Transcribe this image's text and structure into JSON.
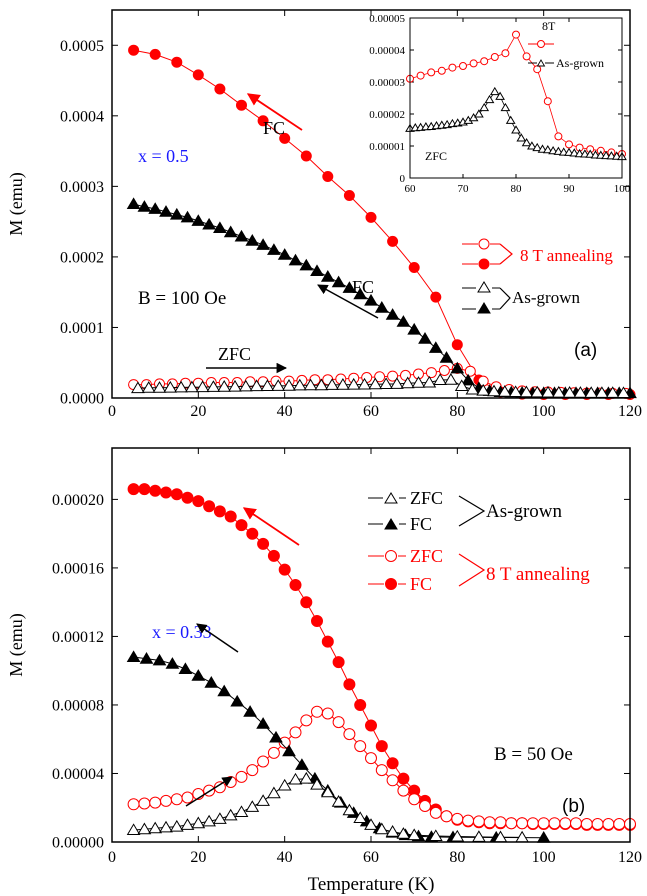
{
  "chart_data": [
    {
      "id": "a",
      "type": "scatter",
      "panel_label": "(a)",
      "xlabel": "",
      "ylabel": "M (emu)",
      "xlim": [
        0,
        120
      ],
      "ylim": [
        0,
        0.00055
      ],
      "x_ticks": [
        0,
        20,
        40,
        60,
        80,
        100,
        120
      ],
      "y_ticks": [
        {
          "v": 0,
          "label": "0.0000"
        },
        {
          "v": 0.0001,
          "label": "0.0001"
        },
        {
          "v": 0.0002,
          "label": "0.0002"
        },
        {
          "v": 0.0003,
          "label": "0.0003"
        },
        {
          "v": 0.0004,
          "label": "0.0004"
        },
        {
          "v": 0.0005,
          "label": "0.0005"
        }
      ],
      "annotations": {
        "composition": "x = 0.5",
        "field": "B = 100 Oe",
        "fc_red": "FC",
        "fc_black": "FC",
        "zfc": "ZFC"
      },
      "legend": {
        "group1": "8 T annealing",
        "group2": "As-grown"
      },
      "series": [
        {
          "key": "8T_FC",
          "color": "#ff0000",
          "marker": "circle",
          "filled": true,
          "x": [
            5,
            10,
            15,
            20,
            25,
            30,
            35,
            40,
            45,
            50,
            55,
            60,
            65,
            70,
            75,
            80,
            85,
            90,
            95,
            100,
            105,
            110,
            115,
            120
          ],
          "y": [
            0.000493,
            0.000487,
            0.000476,
            0.000458,
            0.000438,
            0.000415,
            0.000393,
            0.000368,
            0.000343,
            0.000314,
            0.000287,
            0.000256,
            0.000222,
            0.000185,
            0.000143,
            7.55e-05,
            2.55e-05,
            8.5e-06,
            5.5e-06,
            5e-06,
            5e-06,
            5e-06,
            5e-06,
            5e-06
          ]
        },
        {
          "key": "8T_ZFC",
          "color": "#ff0000",
          "marker": "circle",
          "filled": false,
          "x": [
            5,
            8,
            11,
            14,
            17,
            20,
            23,
            26,
            29,
            32,
            35,
            38,
            41,
            44,
            47,
            50,
            53,
            56,
            59,
            62,
            65,
            68,
            71,
            74,
            77,
            80,
            83,
            86,
            89,
            92,
            95,
            98,
            101,
            104,
            107,
            110,
            113,
            116,
            119
          ],
          "y": [
            1.9e-05,
            1.9e-05,
            2e-05,
            2e-05,
            2.1e-05,
            2.1e-05,
            2.2e-05,
            2.2e-05,
            2.2e-05,
            2.3e-05,
            2.3e-05,
            2.4e-05,
            2.4e-05,
            2.5e-05,
            2.6e-05,
            2.6e-05,
            2.7e-05,
            2.8e-05,
            2.9e-05,
            3e-05,
            3.1e-05,
            3.2e-05,
            3.4e-05,
            3.6e-05,
            3.9e-05,
            4.2e-05,
            3.8e-05,
            2.4e-05,
            1.6e-05,
            1.2e-05,
            1e-05,
            9e-06,
            8.5e-06,
            8e-06,
            7.5e-06,
            7e-06,
            7e-06,
            6.5e-06,
            6.5e-06
          ]
        },
        {
          "key": "AG_FC",
          "color": "#000000",
          "marker": "triangle",
          "filled": true,
          "x": [
            5,
            7.5,
            10,
            12.5,
            15,
            17.5,
            20,
            22.5,
            25,
            27.5,
            30,
            32.5,
            35,
            37.5,
            40,
            42.5,
            45,
            47.5,
            50,
            52.5,
            55,
            57.5,
            60,
            62.5,
            65,
            67.5,
            70,
            72.5,
            75,
            77.5,
            80,
            82.5,
            85,
            87.5,
            90,
            92.5,
            95,
            97.5,
            100,
            102.5,
            105,
            107.5,
            110,
            112.5,
            115,
            117.5,
            120
          ],
          "y": [
            0.000275,
            0.000271,
            0.000268,
            0.000264,
            0.00026,
            0.000256,
            0.000251,
            0.000246,
            0.000241,
            0.000235,
            0.000229,
            0.000223,
            0.000217,
            0.00021,
            0.000203,
            0.000195,
            0.000188,
            0.00018,
            0.000172,
            0.000164,
            0.000156,
            0.000147,
            0.000138,
            0.000128,
            0.000118,
            0.000108,
            9.7e-05,
            8.4e-05,
            7.1e-05,
            5.7e-05,
            4.2e-05,
            2.5e-05,
            1.4e-05,
            1e-05,
            8.5e-06,
            8e-06,
            7.5e-06,
            7e-06,
            7e-06,
            7e-06,
            7e-06,
            7e-06,
            7e-06,
            7e-06,
            7e-06,
            7e-06,
            7e-06
          ]
        },
        {
          "key": "AG_ZFC",
          "color": "#000000",
          "marker": "triangle",
          "filled": false,
          "x": [
            6,
            8.5,
            11,
            13.5,
            16,
            18.5,
            21,
            23.5,
            26,
            28.5,
            31,
            33.5,
            36,
            38.5,
            41,
            43.5,
            46,
            48.5,
            51,
            53.5,
            56,
            58.5,
            61,
            63.5,
            66,
            68.5,
            71,
            73.5,
            76,
            78.5,
            81,
            83.5,
            86,
            88.5,
            91,
            93.5,
            96,
            98.5,
            101,
            103.5,
            106,
            108.5,
            111,
            113.5,
            116,
            118.5
          ],
          "y": [
            1.4e-05,
            1.45e-05,
            1.45e-05,
            1.48e-05,
            1.5e-05,
            1.52e-05,
            1.55e-05,
            1.58e-05,
            1.6e-05,
            1.62e-05,
            1.65e-05,
            1.68e-05,
            1.7e-05,
            1.72e-05,
            1.75e-05,
            1.78e-05,
            1.8e-05,
            1.82e-05,
            1.85e-05,
            1.88e-05,
            1.9e-05,
            1.92e-05,
            1.95e-05,
            1.98e-05,
            2e-05,
            2.1e-05,
            2.15e-05,
            2.2e-05,
            2.55e-05,
            2.6e-05,
            1.7e-05,
            1.2e-05,
            1.05e-05,
            9.5e-06,
            9e-06,
            8.5e-06,
            8.2e-06,
            8e-06,
            7.8e-06,
            7.6e-06,
            7.5e-06,
            7.4e-06,
            7.3e-06,
            7.2e-06,
            7.2e-06,
            7.1e-06
          ]
        }
      ]
    },
    {
      "id": "inset",
      "type": "scatter",
      "xlim": [
        60,
        100
      ],
      "ylim": [
        0,
        5e-05
      ],
      "x_ticks": [
        60,
        70,
        80,
        90,
        100
      ],
      "y_ticks": [
        {
          "v": 0,
          "label": "0"
        },
        {
          "v": 1e-05,
          "label": "0.00001"
        },
        {
          "v": 2e-05,
          "label": "0.00002"
        },
        {
          "v": 3e-05,
          "label": "0.00003"
        },
        {
          "v": 4e-05,
          "label": "0.00004"
        },
        {
          "v": 5e-05,
          "label": "0.00005"
        }
      ],
      "annotation": "ZFC",
      "legend": {
        "s1": "8T",
        "s2": "As-grown"
      },
      "series": [
        {
          "key": "8T",
          "color": "#ff0000",
          "marker": "circle",
          "filled": false,
          "x": [
            60,
            62,
            64,
            66,
            68,
            70,
            72,
            74,
            76,
            78,
            80,
            82,
            84,
            86,
            88,
            90,
            92,
            94,
            96,
            98,
            100
          ],
          "y": [
            3.1e-05,
            3.2e-05,
            3.3e-05,
            3.35e-05,
            3.45e-05,
            3.5e-05,
            3.58e-05,
            3.65e-05,
            3.78e-05,
            3.9e-05,
            4.48e-05,
            3.8e-05,
            3.4e-05,
            2.4e-05,
            1.3e-05,
            1.05e-05,
            9.5e-06,
            9e-06,
            8.5e-06,
            8e-06,
            7.5e-06
          ]
        },
        {
          "key": "AG",
          "color": "#000000",
          "marker": "triangle",
          "filled": false,
          "x": [
            60,
            61,
            62,
            63,
            64,
            65,
            66,
            67,
            68,
            69,
            70,
            71,
            72,
            73,
            74,
            75,
            76,
            77,
            78,
            79,
            80,
            81,
            82,
            83,
            84,
            85,
            86,
            87,
            88,
            89,
            90,
            91,
            92,
            93,
            94,
            95,
            96,
            97,
            98,
            99,
            100
          ],
          "y": [
            1.55e-05,
            1.57e-05,
            1.58e-05,
            1.6e-05,
            1.61e-05,
            1.63e-05,
            1.65e-05,
            1.67e-05,
            1.7e-05,
            1.72e-05,
            1.75e-05,
            1.8e-05,
            1.88e-05,
            2e-05,
            2.2e-05,
            2.45e-05,
            2.7e-05,
            2.55e-05,
            2.2e-05,
            1.8e-05,
            1.5e-05,
            1.25e-05,
            1.1e-05,
            1e-05,
            9.5e-06,
            9e-06,
            8.8e-06,
            8.5e-06,
            8.3e-06,
            8.1e-06,
            8e-06,
            7.8e-06,
            7.6e-06,
            7.5e-06,
            7.4e-06,
            7.2e-06,
            7.1e-06,
            7e-06,
            6.9e-06,
            6.8e-06,
            6.7e-06
          ]
        }
      ]
    },
    {
      "id": "b",
      "type": "scatter",
      "panel_label": "(b)",
      "xlabel": "Temperature (K)",
      "ylabel": "M (emu)",
      "xlim": [
        0,
        120
      ],
      "ylim": [
        0,
        0.00023
      ],
      "x_ticks": [
        0,
        20,
        40,
        60,
        80,
        100,
        120
      ],
      "y_ticks": [
        {
          "v": 0,
          "label": "0.00000"
        },
        {
          "v": 4e-05,
          "label": "0.00004"
        },
        {
          "v": 8e-05,
          "label": "0.00008"
        },
        {
          "v": 0.00012,
          "label": "0.00012"
        },
        {
          "v": 0.00016,
          "label": "0.00016"
        },
        {
          "v": 0.0002,
          "label": "0.00020"
        }
      ],
      "annotations": {
        "composition": "x = 0.33",
        "field": "B = 50 Oe"
      },
      "legend": {
        "zfc1": "ZFC",
        "fc1": "FC",
        "group1": "As-grown",
        "zfc2": "ZFC",
        "fc2": "FC",
        "group2": "8 T annealing"
      },
      "series": [
        {
          "key": "8T_FC",
          "color": "#ff0000",
          "marker": "circle",
          "filled": true,
          "x": [
            5,
            7.5,
            10,
            12.5,
            15,
            17.5,
            20,
            22.5,
            25,
            27.5,
            30,
            32.5,
            35,
            37.5,
            40,
            42.5,
            45,
            47.5,
            50,
            52.5,
            55,
            57.5,
            60,
            62.5,
            65,
            67.5,
            70,
            72.5,
            75,
            77.5,
            80,
            82.5,
            85,
            87.5,
            90,
            92.5,
            95,
            97.5,
            100,
            102.5,
            105,
            107.5,
            110,
            112.5,
            115,
            117.5,
            120
          ],
          "y": [
            0.000206,
            0.000206,
            0.000205,
            0.000204,
            0.000203,
            0.000201,
            0.000199,
            0.000196,
            0.000193,
            0.00019,
            0.000185,
            0.00018,
            0.000174,
            0.000167,
            0.000159,
            0.00015,
            0.00014,
            0.000129,
            0.000117,
            0.000105,
            9.2e-05,
            8e-05,
            6.8e-05,
            5.6e-05,
            4.6e-05,
            3.7e-05,
            3e-05,
            2.4e-05,
            1.9e-05,
            1.5e-05,
            1.3e-05,
            1.2e-05,
            1.15e-05,
            1.1e-05,
            1.1e-05,
            1.1e-05,
            1.1e-05,
            1.05e-05,
            1.05e-05,
            1.05e-05,
            1.05e-05,
            1.05e-05,
            1e-05,
            1e-05,
            1e-05,
            1e-05,
            1e-05
          ]
        },
        {
          "key": "8T_ZFC",
          "color": "#ff0000",
          "marker": "circle",
          "filled": false,
          "x": [
            5,
            7.5,
            10,
            12.5,
            15,
            17.5,
            20,
            22.5,
            25,
            27.5,
            30,
            32.5,
            35,
            37.5,
            40,
            42.5,
            45,
            47.5,
            50,
            52.5,
            55,
            57.5,
            60,
            62.5,
            65,
            67.5,
            70,
            72.5,
            75,
            77.5,
            80,
            82.5,
            85,
            87.5,
            90,
            92.5,
            95,
            97.5,
            100,
            102.5,
            105,
            107.5,
            110,
            112.5,
            115,
            117.5,
            120
          ],
          "y": [
            2.2e-05,
            2.25e-05,
            2.3e-05,
            2.4e-05,
            2.5e-05,
            2.6e-05,
            2.8e-05,
            3e-05,
            3.2e-05,
            3.5e-05,
            3.8e-05,
            4.2e-05,
            4.7e-05,
            5.2e-05,
            5.8e-05,
            6.4e-05,
            7.1e-05,
            7.6e-05,
            7.5e-05,
            7e-05,
            6.3e-05,
            5.6e-05,
            4.9e-05,
            4.2e-05,
            3.6e-05,
            3e-05,
            2.5e-05,
            2.1e-05,
            1.7e-05,
            1.5e-05,
            1.35e-05,
            1.25e-05,
            1.2e-05,
            1.15e-05,
            1.15e-05,
            1.1e-05,
            1.1e-05,
            1.1e-05,
            1.1e-05,
            1.1e-05,
            1.1e-05,
            1.1e-05,
            1.05e-05,
            1.05e-05,
            1.05e-05,
            1.05e-05,
            1.05e-05
          ]
        },
        {
          "key": "AG_FC",
          "color": "#000000",
          "marker": "triangle",
          "filled": true,
          "x": [
            5,
            8,
            11,
            14,
            17,
            20,
            23,
            26,
            29,
            32,
            35,
            38,
            41,
            44,
            47,
            50,
            53,
            56,
            59,
            62,
            65,
            68,
            71,
            74,
            79,
            89,
            100
          ],
          "y": [
            0.000108,
            0.000107,
            0.000106,
            0.000104,
            0.000101,
            9.7e-05,
            9.3e-05,
            8.8e-05,
            8.2e-05,
            7.6e-05,
            6.9e-05,
            6.1e-05,
            5.3e-05,
            4.5e-05,
            3.7e-05,
            3e-05,
            2.3e-05,
            1.7e-05,
            1.2e-05,
            8e-06,
            5.5e-06,
            4e-06,
            3.3e-06,
            3e-06,
            2.8e-06,
            2.6e-06,
            2.5e-06
          ]
        },
        {
          "key": "AG_ZFC",
          "color": "#000000",
          "marker": "triangle",
          "filled": false,
          "x": [
            5,
            7.5,
            10,
            12.5,
            15,
            17.5,
            20,
            22.5,
            25,
            27.5,
            30,
            32.5,
            35,
            37.5,
            40,
            42.5,
            45,
            47.5,
            50,
            52.5,
            55,
            57.5,
            60,
            62.5,
            65,
            67.5,
            70,
            75,
            80,
            85,
            90,
            95
          ],
          "y": [
            7e-06,
            7.5e-06,
            8e-06,
            8.5e-06,
            9e-06,
            1e-05,
            1.1e-05,
            1.2e-05,
            1.35e-05,
            1.55e-05,
            1.75e-05,
            2.05e-05,
            2.4e-05,
            2.85e-05,
            3.3e-05,
            3.65e-05,
            3.7e-05,
            3.35e-05,
            2.9e-05,
            2.35e-05,
            1.85e-05,
            1.4e-05,
            1e-05,
            7.5e-06,
            6e-06,
            4.8e-06,
            4e-06,
            3.5e-06,
            3.2e-06,
            3e-06,
            2.8e-06,
            2.7e-06
          ]
        }
      ]
    }
  ]
}
